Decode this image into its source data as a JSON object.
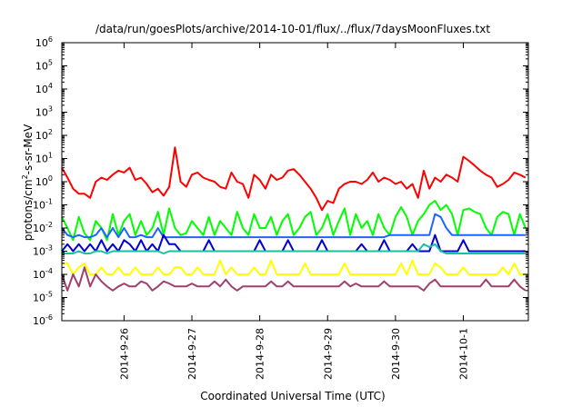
{
  "chart_data": {
    "type": "line",
    "title": "/data/run/goesPlots/archive/2014-10-01/flux/../flux/7daysMoonFluxes.txt",
    "xlabel": "Coordinated Universal Time (UTC)",
    "ylabel": {
      "base": "protons/cm",
      "sup": "2",
      "rest": "-s-sr-MeV"
    },
    "y_scale": "log",
    "ylim": [
      1e-06,
      1000000.0
    ],
    "y_ticks": [
      {
        "base": "10",
        "exp": "-6",
        "value": 1e-06
      },
      {
        "base": "10",
        "exp": "-5",
        "value": 1e-05
      },
      {
        "base": "10",
        "exp": "-4",
        "value": 0.0001
      },
      {
        "base": "10",
        "exp": "-3",
        "value": 0.001
      },
      {
        "base": "10",
        "exp": "-2",
        "value": 0.01
      },
      {
        "base": "10",
        "exp": "-1",
        "value": 0.1
      },
      {
        "base": "10",
        "exp": "0",
        "value": 1
      },
      {
        "base": "10",
        "exp": "1",
        "value": 10
      },
      {
        "base": "10",
        "exp": "2",
        "value": 100
      },
      {
        "base": "10",
        "exp": "3",
        "value": 1000
      },
      {
        "base": "10",
        "exp": "4",
        "value": 10000
      },
      {
        "base": "10",
        "exp": "5",
        "value": 100000
      },
      {
        "base": "10",
        "exp": "6",
        "value": 1000000
      }
    ],
    "x_range": [
      "2014-09-25 02:00",
      "2014-10-01 23:00"
    ],
    "x_ticks": [
      {
        "label": "2014-9-26",
        "value": "2014-09-26 00:00"
      },
      {
        "label": "2014-9-27",
        "value": "2014-09-27 00:00"
      },
      {
        "label": "2014-9-28",
        "value": "2014-09-28 00:00"
      },
      {
        "label": "2014-9-29",
        "value": "2014-09-29 00:00"
      },
      {
        "label": "2014-9-30",
        "value": "2014-09-30 00:00"
      },
      {
        "label": "2014-10-1",
        "value": "2014-10-01 00:00"
      }
    ],
    "grid": false,
    "legend": "none",
    "x": [
      "2014-09-25 02:00",
      "2014-09-25 04:00",
      "2014-09-25 06:00",
      "2014-09-25 08:00",
      "2014-09-25 10:00",
      "2014-09-25 12:00",
      "2014-09-25 14:00",
      "2014-09-25 16:00",
      "2014-09-25 18:00",
      "2014-09-25 20:00",
      "2014-09-25 22:00",
      "2014-09-26 00:00",
      "2014-09-26 02:00",
      "2014-09-26 04:00",
      "2014-09-26 06:00",
      "2014-09-26 08:00",
      "2014-09-26 10:00",
      "2014-09-26 12:00",
      "2014-09-26 14:00",
      "2014-09-26 16:00",
      "2014-09-26 18:00",
      "2014-09-26 20:00",
      "2014-09-26 22:00",
      "2014-09-27 00:00",
      "2014-09-27 02:00",
      "2014-09-27 04:00",
      "2014-09-27 06:00",
      "2014-09-27 08:00",
      "2014-09-27 10:00",
      "2014-09-27 12:00",
      "2014-09-27 14:00",
      "2014-09-27 16:00",
      "2014-09-27 18:00",
      "2014-09-27 20:00",
      "2014-09-27 22:00",
      "2014-09-28 00:00",
      "2014-09-28 02:00",
      "2014-09-28 04:00",
      "2014-09-28 06:00",
      "2014-09-28 08:00",
      "2014-09-28 10:00",
      "2014-09-28 12:00",
      "2014-09-28 14:00",
      "2014-09-28 16:00",
      "2014-09-28 18:00",
      "2014-09-28 20:00",
      "2014-09-28 22:00",
      "2014-09-29 00:00",
      "2014-09-29 02:00",
      "2014-09-29 04:00",
      "2014-09-29 06:00",
      "2014-09-29 08:00",
      "2014-09-29 10:00",
      "2014-09-29 12:00",
      "2014-09-29 14:00",
      "2014-09-29 16:00",
      "2014-09-29 18:00",
      "2014-09-29 20:00",
      "2014-09-29 22:00",
      "2014-09-30 00:00",
      "2014-09-30 02:00",
      "2014-09-30 04:00",
      "2014-09-30 06:00",
      "2014-09-30 08:00",
      "2014-09-30 10:00",
      "2014-09-30 12:00",
      "2014-09-30 14:00",
      "2014-09-30 16:00",
      "2014-09-30 18:00",
      "2014-09-30 20:00",
      "2014-09-30 22:00",
      "2014-10-01 00:00",
      "2014-10-01 02:00",
      "2014-10-01 04:00",
      "2014-10-01 06:00",
      "2014-10-01 08:00",
      "2014-10-01 10:00",
      "2014-10-01 12:00",
      "2014-10-01 14:00",
      "2014-10-01 16:00",
      "2014-10-01 18:00",
      "2014-10-01 20:00",
      "2014-10-01 22:00"
    ],
    "series": [
      {
        "color": "#ff0000",
        "values": [
          4.0,
          1.5,
          0.5,
          0.3,
          0.3,
          0.2,
          1.0,
          1.5,
          1.2,
          2.0,
          3.0,
          2.5,
          4.0,
          1.2,
          1.5,
          0.8,
          0.35,
          0.5,
          0.25,
          0.6,
          30.0,
          1.0,
          0.6,
          2.0,
          2.5,
          1.5,
          1.2,
          1.0,
          0.6,
          0.5,
          2.5,
          1.0,
          0.8,
          0.2,
          2.0,
          1.2,
          0.5,
          2.0,
          1.2,
          1.5,
          3.0,
          3.5,
          2.0,
          1.0,
          0.5,
          0.2,
          0.06,
          0.15,
          0.12,
          0.5,
          0.8,
          1.0,
          1.0,
          0.8,
          1.2,
          2.5,
          1.0,
          1.5,
          1.2,
          0.8,
          1.0,
          0.5,
          0.8,
          0.2,
          3.0,
          0.5,
          1.5,
          1.0,
          2.0,
          1.5,
          1.0,
          12.0,
          8.0,
          5.0,
          3.0,
          2.0,
          1.5,
          0.6,
          0.8,
          1.2,
          2.5,
          2.0,
          1.5
        ]
      },
      {
        "color": "#00ff00",
        "values": [
          0.03,
          0.01,
          0.003,
          0.03,
          0.006,
          0.003,
          0.02,
          0.01,
          0.003,
          0.04,
          0.005,
          0.02,
          0.04,
          0.005,
          0.02,
          0.005,
          0.01,
          0.05,
          0.005,
          0.07,
          0.01,
          0.005,
          0.006,
          0.02,
          0.01,
          0.005,
          0.03,
          0.005,
          0.02,
          0.01,
          0.005,
          0.05,
          0.01,
          0.005,
          0.04,
          0.01,
          0.01,
          0.03,
          0.005,
          0.02,
          0.04,
          0.005,
          0.01,
          0.03,
          0.05,
          0.005,
          0.01,
          0.04,
          0.005,
          0.02,
          0.07,
          0.005,
          0.04,
          0.01,
          0.02,
          0.005,
          0.04,
          0.01,
          0.005,
          0.03,
          0.08,
          0.03,
          0.005,
          0.02,
          0.04,
          0.1,
          0.15,
          0.06,
          0.1,
          0.04,
          0.005,
          0.06,
          0.07,
          0.05,
          0.04,
          0.01,
          0.005,
          0.03,
          0.05,
          0.04,
          0.005,
          0.04,
          0.01
        ]
      },
      {
        "color": "#1e64ff",
        "values": [
          0.01,
          0.005,
          0.004,
          0.005,
          0.004,
          0.004,
          0.005,
          0.01,
          0.004,
          0.01,
          0.004,
          0.01,
          0.004,
          0.004,
          0.005,
          0.004,
          0.004,
          0.01,
          0.004,
          0.004,
          0.004,
          0.004,
          0.004,
          0.004,
          0.004,
          0.004,
          0.004,
          0.004,
          0.004,
          0.004,
          0.004,
          0.004,
          0.004,
          0.004,
          0.004,
          0.004,
          0.004,
          0.004,
          0.004,
          0.004,
          0.004,
          0.004,
          0.004,
          0.004,
          0.004,
          0.004,
          0.004,
          0.004,
          0.004,
          0.004,
          0.004,
          0.004,
          0.004,
          0.004,
          0.004,
          0.004,
          0.004,
          0.004,
          0.005,
          0.005,
          0.005,
          0.005,
          0.005,
          0.005,
          0.005,
          0.005,
          0.04,
          0.03,
          0.01,
          0.005,
          0.005,
          0.005,
          0.005,
          0.005,
          0.005,
          0.005,
          0.005,
          0.005,
          0.005,
          0.005,
          0.005,
          0.005,
          0.005
        ]
      },
      {
        "color": "#0000d0",
        "values": [
          0.001,
          0.002,
          0.001,
          0.002,
          0.001,
          0.002,
          0.001,
          0.003,
          0.001,
          0.002,
          0.001,
          0.003,
          0.002,
          0.001,
          0.003,
          0.001,
          0.002,
          0.001,
          0.005,
          0.002,
          0.002,
          0.001,
          0.001,
          0.001,
          0.001,
          0.001,
          0.003,
          0.001,
          0.001,
          0.001,
          0.001,
          0.001,
          0.001,
          0.001,
          0.001,
          0.003,
          0.001,
          0.001,
          0.001,
          0.001,
          0.003,
          0.001,
          0.001,
          0.001,
          0.001,
          0.001,
          0.003,
          0.001,
          0.001,
          0.001,
          0.001,
          0.001,
          0.001,
          0.002,
          0.001,
          0.001,
          0.001,
          0.003,
          0.001,
          0.001,
          0.001,
          0.001,
          0.002,
          0.001,
          0.001,
          0.001,
          0.005,
          0.001,
          0.001,
          0.001,
          0.001,
          0.003,
          0.001,
          0.001,
          0.001,
          0.001,
          0.001,
          0.001,
          0.001,
          0.001,
          0.001,
          0.001,
          0.001
        ]
      },
      {
        "color": "#17c0a0",
        "values": [
          0.0008,
          0.0008,
          0.0008,
          0.001,
          0.0008,
          0.0008,
          0.001,
          0.001,
          0.0008,
          0.001,
          0.001,
          0.001,
          0.001,
          0.001,
          0.001,
          0.001,
          0.001,
          0.001,
          0.0008,
          0.001,
          0.001,
          0.001,
          0.001,
          0.001,
          0.001,
          0.001,
          0.001,
          0.001,
          0.001,
          0.001,
          0.001,
          0.001,
          0.001,
          0.001,
          0.001,
          0.001,
          0.001,
          0.001,
          0.001,
          0.001,
          0.001,
          0.001,
          0.001,
          0.001,
          0.001,
          0.001,
          0.001,
          0.001,
          0.001,
          0.001,
          0.001,
          0.001,
          0.001,
          0.001,
          0.001,
          0.001,
          0.001,
          0.001,
          0.001,
          0.001,
          0.001,
          0.001,
          0.001,
          0.001,
          0.002,
          0.0015,
          0.002,
          0.001,
          0.0008,
          0.0008,
          0.0008,
          0.0008,
          0.0008,
          0.0008,
          0.0008,
          0.0008,
          0.0008,
          0.0008,
          0.0008,
          0.0008,
          0.0008,
          0.0008,
          0.0008
        ]
      },
      {
        "color": "#ffff00",
        "values": [
          0.0003,
          0.0003,
          0.0001,
          0.0002,
          0.0003,
          0.0001,
          0.0001,
          0.0002,
          0.0001,
          0.0001,
          0.0002,
          0.0001,
          0.0001,
          0.0002,
          0.0001,
          0.0001,
          0.0001,
          0.0002,
          0.0001,
          0.0001,
          0.0002,
          0.0002,
          0.0001,
          0.0001,
          0.0002,
          0.0001,
          0.0001,
          0.0001,
          0.0004,
          0.0001,
          0.0002,
          0.0001,
          0.0001,
          0.0001,
          0.0002,
          0.0001,
          0.0001,
          0.0004,
          0.0001,
          0.0001,
          0.0001,
          0.0001,
          0.0001,
          0.0003,
          0.0001,
          0.0001,
          0.0001,
          0.0001,
          0.0001,
          0.0001,
          0.0003,
          0.0001,
          0.0001,
          0.0001,
          0.0001,
          0.0001,
          0.0001,
          0.0001,
          0.0001,
          0.0001,
          0.0003,
          0.0001,
          0.0004,
          0.0001,
          0.0001,
          0.0001,
          0.0003,
          0.0002,
          0.0001,
          0.0001,
          0.0001,
          0.0002,
          0.0001,
          0.0001,
          0.0001,
          0.0001,
          0.0001,
          0.0001,
          0.0002,
          0.0001,
          0.0003,
          0.0001,
          0.0001
        ]
      },
      {
        "color": "#a0406e",
        "values": [
          0.0001,
          2e-05,
          0.0001,
          3e-05,
          0.0002,
          3e-05,
          0.0001,
          5e-05,
          3e-05,
          2e-05,
          3e-05,
          4e-05,
          3e-05,
          3e-05,
          5e-05,
          4e-05,
          2e-05,
          3e-05,
          5e-05,
          4e-05,
          3e-05,
          3e-05,
          3e-05,
          4e-05,
          3e-05,
          3e-05,
          3e-05,
          5e-05,
          3e-05,
          6e-05,
          3e-05,
          2e-05,
          3e-05,
          3e-05,
          3e-05,
          3e-05,
          3e-05,
          5e-05,
          3e-05,
          3e-05,
          5e-05,
          3e-05,
          3e-05,
          3e-05,
          3e-05,
          3e-05,
          3e-05,
          3e-05,
          3e-05,
          3e-05,
          5e-05,
          3e-05,
          4e-05,
          3e-05,
          3e-05,
          3e-05,
          3e-05,
          5e-05,
          3e-05,
          3e-05,
          3e-05,
          3e-05,
          3e-05,
          3e-05,
          2e-05,
          4e-05,
          6e-05,
          3e-05,
          3e-05,
          3e-05,
          3e-05,
          3e-05,
          3e-05,
          3e-05,
          3e-05,
          6e-05,
          3e-05,
          3e-05,
          3e-05,
          3e-05,
          6e-05,
          3e-05,
          2e-05
        ]
      }
    ]
  }
}
